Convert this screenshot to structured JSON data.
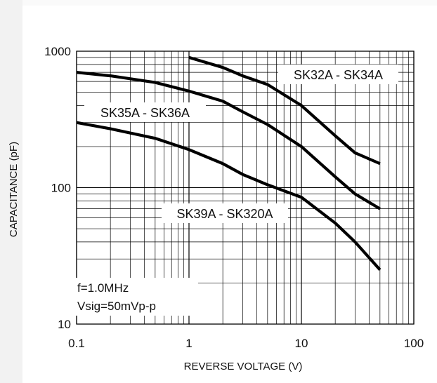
{
  "chart_data": {
    "type": "line",
    "xscale": "log",
    "yscale": "log",
    "xlim": [
      0.1,
      100
    ],
    "ylim": [
      10,
      1000
    ],
    "grid": true,
    "xlabel": "REVERSE VOLTAGE (V)",
    "ylabel": "CAPACITANCE (pF)",
    "x_ticks": [
      "0.1",
      "1",
      "10",
      "100"
    ],
    "y_ticks": [
      "10",
      "100",
      "1000"
    ],
    "series": [
      {
        "name": "SK32A - SK34A",
        "x": [
          1,
          2,
          3,
          5,
          10,
          20,
          30,
          50
        ],
        "y": [
          900,
          760,
          660,
          570,
          400,
          240,
          180,
          150
        ]
      },
      {
        "name": "SK35A - SK36A",
        "x": [
          0.1,
          0.2,
          0.5,
          1,
          2,
          3,
          5,
          10,
          20,
          30,
          50
        ],
        "y": [
          700,
          660,
          590,
          510,
          430,
          360,
          290,
          200,
          120,
          90,
          70
        ]
      },
      {
        "name": "SK39A - SK320A",
        "x": [
          0.1,
          0.2,
          0.5,
          1,
          2,
          3,
          5,
          10,
          20,
          30,
          50
        ],
        "y": [
          300,
          270,
          230,
          190,
          150,
          125,
          105,
          85,
          55,
          40,
          25
        ]
      }
    ],
    "annotations": [
      "f=1.0MHz",
      "Vsig=50mVp-p"
    ],
    "line_color": "#000000"
  }
}
